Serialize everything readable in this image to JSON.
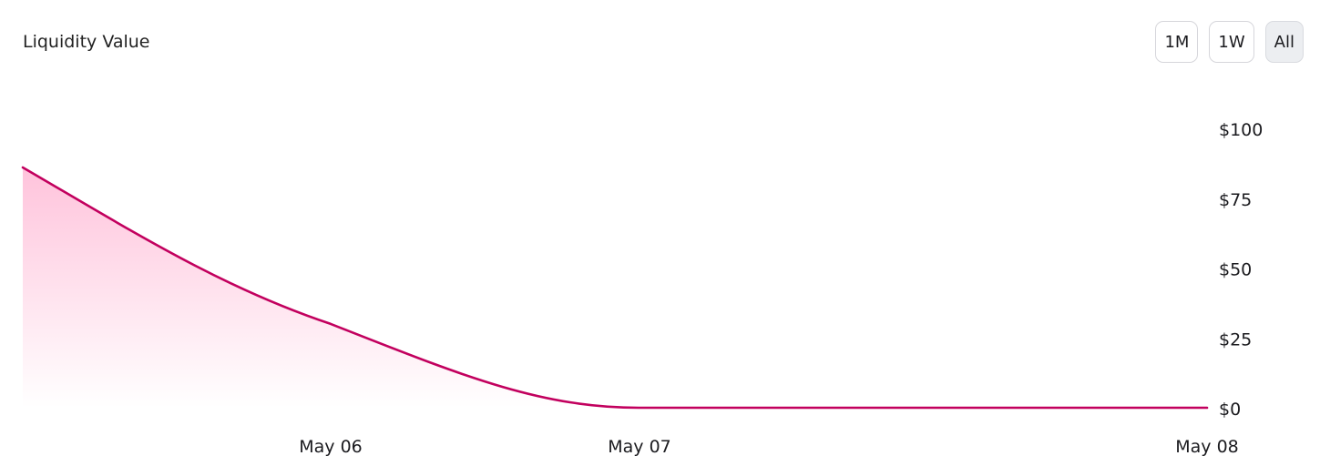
{
  "header": {
    "title": "Liquidity Value"
  },
  "range_buttons": [
    {
      "label": "1M",
      "active": false
    },
    {
      "label": "1W",
      "active": false
    },
    {
      "label": "All",
      "active": true
    }
  ],
  "colors": {
    "line": "#c2005e",
    "fill_top": "#ff7ab0",
    "active_button_bg": "#eceef1"
  },
  "chart_data": {
    "type": "area",
    "title": "Liquidity Value",
    "x_ticks": [
      "May 06",
      "May 07",
      "May 08"
    ],
    "y_ticks": [
      "$0",
      "$25",
      "$50",
      "$75",
      "$100"
    ],
    "ylim": [
      0,
      100
    ],
    "grid": false,
    "legend": "none",
    "series": [
      {
        "values": [
          {
            "x": "May 05",
            "y": 86
          },
          {
            "x": "May 06",
            "y": 30
          },
          {
            "x": "May 07",
            "y": 0
          },
          {
            "x": "May 08",
            "y": 0
          }
        ]
      }
    ]
  }
}
